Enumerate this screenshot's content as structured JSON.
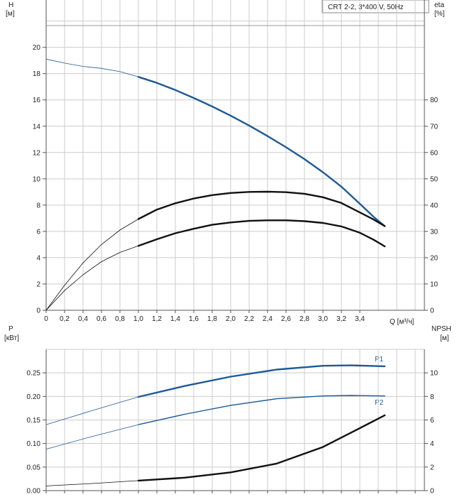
{
  "legend_box": "CRT 2-2, 3*400 V, 50Hz",
  "colors": {
    "blue": "#1f5a96",
    "black": "#111111",
    "grid": "#cccccc"
  },
  "chart_data": [
    {
      "type": "line",
      "panel": "top",
      "left_axis": {
        "label": "H",
        "unit": "[м]",
        "range": [
          0,
          23.6
        ],
        "ticks": [
          0,
          2,
          4,
          6,
          8,
          10,
          12,
          14,
          16,
          18,
          20
        ]
      },
      "right_axis": {
        "label": "eta",
        "unit": "[%]",
        "range": [
          0,
          118
        ],
        "ticks": [
          0,
          10,
          20,
          30,
          40,
          50,
          60,
          70,
          80
        ]
      },
      "x_axis": {
        "label": "Q [м³/ч]",
        "range": [
          0,
          4.1
        ],
        "ticks": [
          "0",
          "0,2",
          "0,4",
          "0,6",
          "0,8",
          "1,0",
          "1,2",
          "1,4",
          "1,6",
          "1,8",
          "2,0",
          "2,2",
          "2,4",
          "2,6",
          "2,8",
          "3,0",
          "3,2",
          "3,4"
        ]
      },
      "series": [
        {
          "id": "H",
          "axis": "left",
          "color": "blue",
          "x": [
            0,
            0.2,
            0.4,
            0.6,
            0.8,
            1.0,
            1.2,
            1.4,
            1.6,
            1.8,
            2.0,
            2.2,
            2.4,
            2.6,
            2.8,
            3.0,
            3.2,
            3.4,
            3.55,
            3.67
          ],
          "y": [
            19.1,
            18.8,
            18.55,
            18.4,
            18.15,
            17.75,
            17.3,
            16.75,
            16.15,
            15.5,
            14.8,
            14.05,
            13.25,
            12.4,
            11.5,
            10.5,
            9.4,
            8.1,
            7.1,
            6.4
          ],
          "duty_from": 1.0
        },
        {
          "id": "eta_upper",
          "axis": "right",
          "color": "black",
          "x": [
            0,
            0.2,
            0.4,
            0.6,
            0.8,
            1.0,
            1.2,
            1.4,
            1.6,
            1.8,
            2.0,
            2.2,
            2.4,
            2.6,
            2.8,
            3.0,
            3.2,
            3.4,
            3.55,
            3.67
          ],
          "y": [
            0,
            9.5,
            18,
            25,
            30.5,
            34.7,
            38.3,
            40.7,
            42.5,
            43.8,
            44.6,
            45,
            45.1,
            44.9,
            44.3,
            43,
            40.8,
            37.2,
            34.5,
            32
          ],
          "duty_from": 1.0
        },
        {
          "id": "eta_lower",
          "axis": "right",
          "color": "black",
          "x": [
            0,
            0.2,
            0.4,
            0.6,
            0.8,
            1.0,
            1.2,
            1.4,
            1.6,
            1.8,
            2.0,
            2.2,
            2.4,
            2.6,
            2.8,
            3.0,
            3.2,
            3.4,
            3.55,
            3.67
          ],
          "y": [
            0,
            7.5,
            13.5,
            18.5,
            22,
            24.5,
            27,
            29.3,
            31,
            32.5,
            33.4,
            34,
            34.2,
            34.2,
            33.9,
            33.2,
            31.9,
            29.5,
            26.8,
            24.3
          ],
          "duty_from": 1.0
        }
      ]
    },
    {
      "type": "line",
      "panel": "bottom",
      "left_axis": {
        "label": "P",
        "unit": "[кВт]",
        "range": [
          0,
          0.3
        ],
        "ticks": [
          "0.00",
          "0.05",
          "0.10",
          "0.15",
          "0.20",
          "0.25"
        ]
      },
      "right_axis": {
        "label": "NPSH",
        "unit": "[м]",
        "range": [
          0,
          12
        ],
        "ticks": [
          "0",
          "2",
          "4",
          "6",
          "8",
          "10"
        ]
      },
      "x_axis": {
        "range": [
          0,
          4.1
        ]
      },
      "series": [
        {
          "id": "P1",
          "name": "P1",
          "axis": "left",
          "color": "blue",
          "x": [
            0,
            0.5,
            1.0,
            1.5,
            2.0,
            2.5,
            3.0,
            3.3,
            3.67
          ],
          "y": [
            0.14,
            0.17,
            0.199,
            0.222,
            0.242,
            0.257,
            0.265,
            0.266,
            0.264
          ],
          "duty_from": 1.0
        },
        {
          "id": "P2",
          "name": "P2",
          "axis": "left",
          "color": "blue",
          "x": [
            0,
            0.5,
            1.0,
            1.5,
            2.0,
            2.5,
            3.0,
            3.3,
            3.67
          ],
          "y": [
            0.088,
            0.115,
            0.14,
            0.162,
            0.181,
            0.195,
            0.201,
            0.202,
            0.201
          ],
          "duty_from": 1.0
        },
        {
          "id": "NPSH",
          "axis": "right",
          "color": "black",
          "x": [
            0,
            0.5,
            1.0,
            1.5,
            2.0,
            2.5,
            3.0,
            3.3,
            3.67
          ],
          "y": [
            0.4,
            0.6,
            0.85,
            1.1,
            1.55,
            2.3,
            3.7,
            4.9,
            6.4
          ],
          "duty_from": 1.0
        }
      ]
    }
  ]
}
